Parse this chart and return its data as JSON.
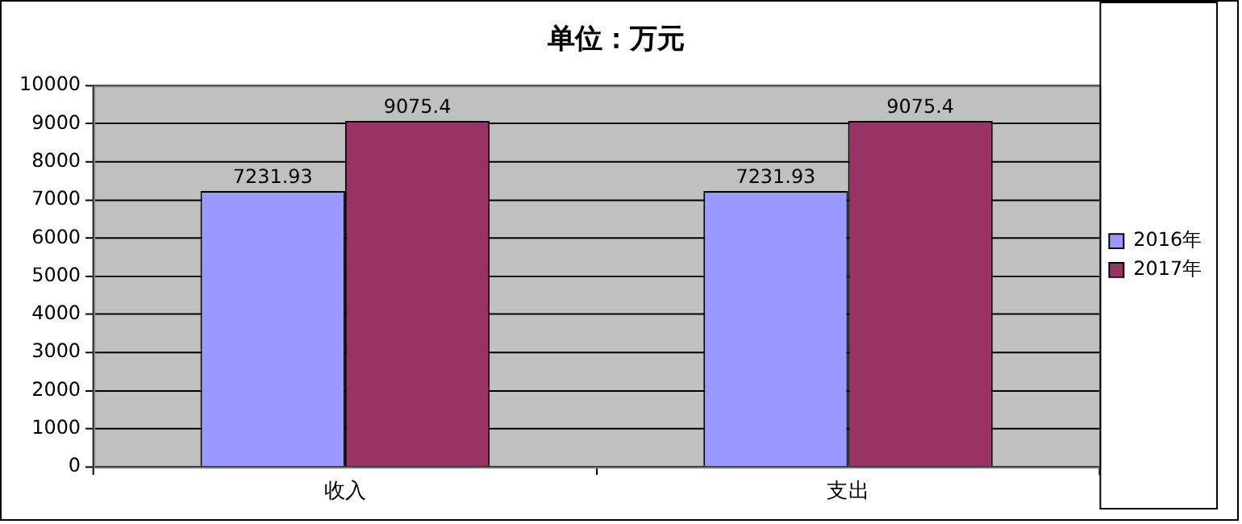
{
  "chart_data": {
    "type": "bar",
    "title": "单位：万元",
    "categories": [
      "收入",
      "支出"
    ],
    "series": [
      {
        "name": "2016年",
        "color": "#9999ff",
        "values": [
          7231.93,
          7231.93
        ]
      },
      {
        "name": "2017年",
        "color": "#993366",
        "values": [
          9075.4,
          9075.4
        ]
      }
    ],
    "ylim": [
      0,
      10000
    ],
    "yticks": [
      0,
      1000,
      2000,
      3000,
      4000,
      5000,
      6000,
      7000,
      8000,
      9000,
      10000
    ],
    "grid": "y",
    "legend": "right",
    "data_labels": true
  }
}
